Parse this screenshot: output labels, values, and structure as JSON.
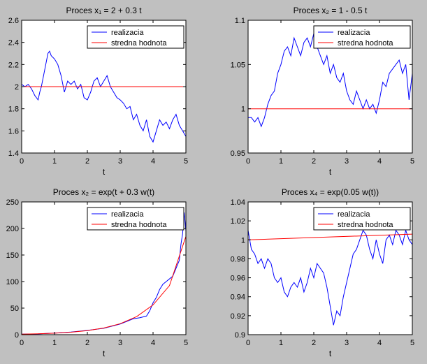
{
  "figure": {
    "background": "#c0c0c0"
  },
  "chart_data": [
    {
      "type": "line",
      "title": "Proces x₁ = 2 + 0.3 t",
      "xlabel": "t",
      "ylabel": "",
      "xlim": [
        0,
        5
      ],
      "ylim": [
        1.4,
        2.6
      ],
      "xticks": [
        "0",
        "1",
        "2",
        "3",
        "4",
        "5"
      ],
      "yticks": [
        "1.4",
        "1.6",
        "1.8",
        "2",
        "2.2",
        "2.4",
        "2.6"
      ],
      "grid": false,
      "legend": "top-right",
      "series": [
        {
          "name": "realizacia",
          "color": "#0000ff",
          "x": [
            0,
            0.1,
            0.2,
            0.3,
            0.4,
            0.5,
            0.55,
            0.6,
            0.7,
            0.8,
            0.85,
            0.9,
            1.0,
            1.1,
            1.2,
            1.3,
            1.4,
            1.5,
            1.6,
            1.7,
            1.8,
            1.9,
            2.0,
            2.1,
            2.2,
            2.3,
            2.4,
            2.5,
            2.6,
            2.7,
            2.8,
            2.9,
            3.0,
            3.1,
            3.2,
            3.3,
            3.4,
            3.5,
            3.6,
            3.7,
            3.8,
            3.9,
            4.0,
            4.1,
            4.2,
            4.3,
            4.4,
            4.5,
            4.6,
            4.7,
            4.8,
            4.9,
            5.0
          ],
          "y": [
            2.02,
            2.0,
            2.02,
            1.98,
            1.92,
            1.88,
            1.95,
            2.0,
            2.15,
            2.3,
            2.32,
            2.28,
            2.25,
            2.2,
            2.1,
            1.95,
            2.05,
            2.02,
            2.05,
            1.98,
            2.02,
            1.9,
            1.88,
            1.95,
            2.05,
            2.08,
            2.0,
            2.05,
            2.1,
            2.0,
            1.95,
            1.9,
            1.88,
            1.85,
            1.8,
            1.82,
            1.7,
            1.75,
            1.65,
            1.6,
            1.7,
            1.55,
            1.5,
            1.6,
            1.7,
            1.65,
            1.68,
            1.62,
            1.7,
            1.75,
            1.65,
            1.6,
            1.55
          ]
        },
        {
          "name": "stredna hodnota",
          "color": "#ff0000",
          "x": [
            0,
            5
          ],
          "y": [
            2,
            2
          ]
        }
      ]
    },
    {
      "type": "line",
      "title": "Proces x₂ = 1 - 0.5 t",
      "xlabel": "t",
      "ylabel": "",
      "xlim": [
        0,
        5
      ],
      "ylim": [
        0.95,
        1.1
      ],
      "xticks": [
        "0",
        "1",
        "2",
        "3",
        "4",
        "5"
      ],
      "yticks": [
        "0.95",
        "1",
        "1.05",
        "1.1"
      ],
      "grid": false,
      "legend": "top-right",
      "series": [
        {
          "name": "realizacia",
          "color": "#0000ff",
          "x": [
            0,
            0.1,
            0.2,
            0.3,
            0.4,
            0.5,
            0.6,
            0.7,
            0.8,
            0.9,
            1.0,
            1.1,
            1.2,
            1.3,
            1.4,
            1.5,
            1.6,
            1.7,
            1.8,
            1.9,
            2.0,
            2.1,
            2.2,
            2.3,
            2.4,
            2.5,
            2.6,
            2.7,
            2.8,
            2.9,
            3.0,
            3.1,
            3.2,
            3.3,
            3.4,
            3.5,
            3.6,
            3.7,
            3.8,
            3.9,
            4.0,
            4.1,
            4.2,
            4.3,
            4.4,
            4.5,
            4.6,
            4.7,
            4.8,
            4.9,
            5.0
          ],
          "y": [
            0.99,
            0.99,
            0.985,
            0.99,
            0.98,
            0.99,
            1.005,
            1.015,
            1.02,
            1.04,
            1.05,
            1.065,
            1.07,
            1.06,
            1.08,
            1.07,
            1.06,
            1.075,
            1.08,
            1.07,
            1.085,
            1.07,
            1.06,
            1.05,
            1.06,
            1.04,
            1.05,
            1.035,
            1.03,
            1.04,
            1.02,
            1.01,
            1.005,
            1.02,
            1.01,
            1.0,
            1.01,
            1.0,
            1.005,
            0.995,
            1.01,
            1.03,
            1.025,
            1.04,
            1.045,
            1.05,
            1.055,
            1.04,
            1.05,
            1.01,
            1.04
          ]
        },
        {
          "name": "stredna hodnota",
          "color": "#ff0000",
          "x": [
            0,
            5
          ],
          "y": [
            1,
            1
          ]
        }
      ]
    },
    {
      "type": "line",
      "title": "Proces x₂ = exp(t + 0.3 w(t)",
      "xlabel": "t",
      "ylabel": "",
      "xlim": [
        0,
        5
      ],
      "ylim": [
        0,
        250
      ],
      "xticks": [
        "0",
        "1",
        "2",
        "3",
        "4",
        "5"
      ],
      "yticks": [
        "0",
        "50",
        "100",
        "150",
        "200",
        "250"
      ],
      "grid": false,
      "legend": "top-right",
      "series": [
        {
          "name": "realizacia",
          "color": "#0000ff",
          "x": [
            0,
            0.5,
            1.0,
            1.5,
            2.0,
            2.5,
            3.0,
            3.2,
            3.4,
            3.6,
            3.8,
            3.9,
            4.0,
            4.1,
            4.2,
            4.3,
            4.4,
            4.5,
            4.6,
            4.7,
            4.8,
            4.85,
            4.9,
            4.95,
            5.0
          ],
          "y": [
            1,
            1.5,
            3,
            5,
            8,
            12,
            20,
            25,
            30,
            32,
            35,
            45,
            60,
            70,
            85,
            95,
            100,
            105,
            110,
            125,
            140,
            170,
            190,
            230,
            195
          ]
        },
        {
          "name": "stredna hodnota",
          "color": "#ff0000",
          "x": [
            0,
            0.5,
            1.0,
            1.5,
            2.0,
            2.5,
            3.0,
            3.5,
            4.0,
            4.5,
            5.0
          ],
          "y": [
            1.0,
            1.7,
            2.8,
            4.6,
            7.6,
            12.5,
            20.6,
            34.0,
            56.0,
            92.4,
            185.0
          ]
        }
      ]
    },
    {
      "type": "line",
      "title": "Proces x₄ = exp(0.05 w(t))",
      "xlabel": "t",
      "ylabel": "",
      "xlim": [
        0,
        5
      ],
      "ylim": [
        0.9,
        1.04
      ],
      "xticks": [
        "0",
        "1",
        "2",
        "3",
        "4",
        "5"
      ],
      "yticks": [
        "0.9",
        "0.92",
        "0.94",
        "0.96",
        "0.98",
        "1",
        "1.02",
        "1.04"
      ],
      "grid": false,
      "legend": "top-right",
      "series": [
        {
          "name": "realizacia",
          "color": "#0000ff",
          "x": [
            0,
            0.1,
            0.2,
            0.3,
            0.4,
            0.5,
            0.6,
            0.7,
            0.8,
            0.9,
            1.0,
            1.1,
            1.2,
            1.3,
            1.4,
            1.5,
            1.6,
            1.7,
            1.8,
            1.9,
            2.0,
            2.1,
            2.2,
            2.3,
            2.4,
            2.5,
            2.6,
            2.7,
            2.8,
            2.9,
            3.0,
            3.1,
            3.2,
            3.3,
            3.4,
            3.5,
            3.6,
            3.7,
            3.8,
            3.9,
            4.0,
            4.1,
            4.2,
            4.3,
            4.4,
            4.5,
            4.6,
            4.7,
            4.8,
            4.9,
            5.0
          ],
          "y": [
            1.01,
            0.99,
            0.985,
            0.975,
            0.98,
            0.97,
            0.98,
            0.975,
            0.96,
            0.955,
            0.96,
            0.945,
            0.94,
            0.95,
            0.955,
            0.95,
            0.96,
            0.945,
            0.955,
            0.97,
            0.96,
            0.975,
            0.97,
            0.965,
            0.95,
            0.93,
            0.91,
            0.925,
            0.92,
            0.94,
            0.955,
            0.97,
            0.985,
            0.99,
            1.0,
            1.01,
            1.005,
            0.99,
            0.98,
            1.0,
            0.985,
            0.975,
            1.0,
            1.005,
            0.995,
            1.01,
            1.005,
            0.995,
            1.01,
            1.0,
            0.995
          ]
        },
        {
          "name": "stredna hodnota",
          "color": "#ff0000",
          "x": [
            0,
            5
          ],
          "y": [
            1.0,
            1.006
          ]
        }
      ]
    }
  ]
}
